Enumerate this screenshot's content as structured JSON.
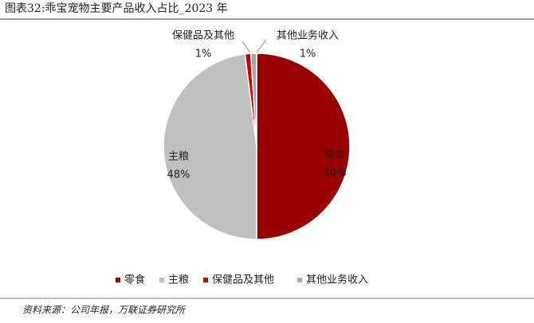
{
  "chart_data": {
    "type": "pie",
    "title": "图表32:乖宝宠物主要产品收入占比_2023 年",
    "categories": [
      "零食",
      "主粮",
      "保健品及其他",
      "其他业务收入"
    ],
    "values": [
      50,
      48,
      1,
      1
    ],
    "value_labels": [
      "50%",
      "48%",
      "1%",
      "1%"
    ],
    "colors": [
      "#990000",
      "#c0c0c0",
      "#cc0000",
      "#a6a6a6"
    ],
    "legend": "bottom",
    "source": "资料来源：公司年报，万联证券研究所"
  }
}
